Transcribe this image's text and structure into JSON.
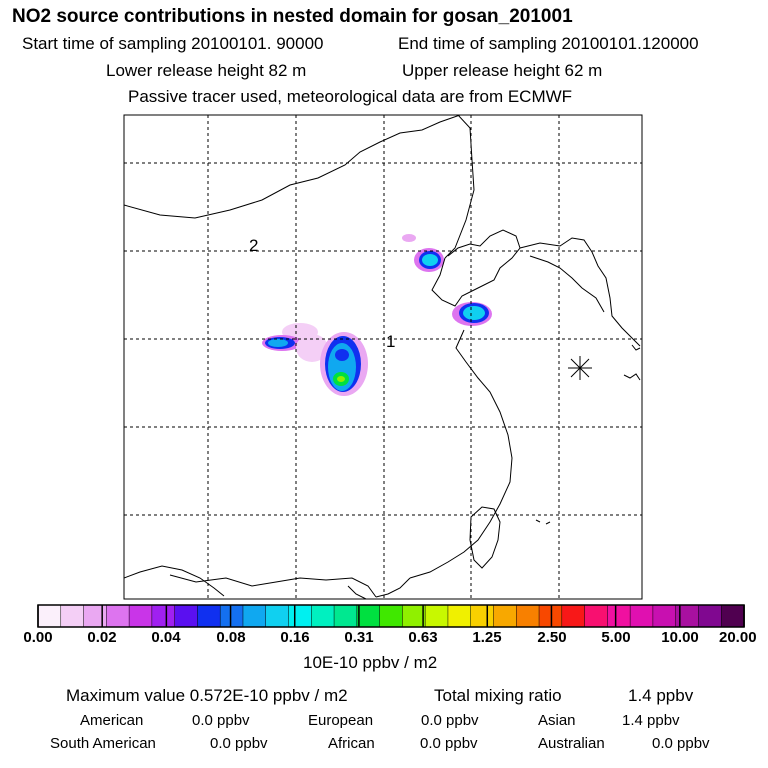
{
  "title": "NO2 source contributions in nested domain for gosan_201001",
  "start_time": "Start time of sampling 20100101. 90000",
  "end_time": "End time of sampling 20100101.120000",
  "lower_height": "Lower release height   82 m",
  "upper_height": "Upper release height   62 m",
  "passive_note": "Passive tracer used, meteorological data are from ECMWF",
  "map_labels": {
    "label_1": "1",
    "label_2": "2"
  },
  "chart_data": {
    "type": "heatmap",
    "title": "NO2 source contributions in nested domain for gosan_201001",
    "colorbar_ticks": [
      "0.00",
      "0.02",
      "0.04",
      "0.08",
      "0.16",
      "0.31",
      "0.63",
      "1.25",
      "2.50",
      "5.00",
      "10.00",
      "20.00"
    ],
    "colorbar_unit": "10E-10 ppbv / m2",
    "colors": [
      "#fbf0fb",
      "#f4cff6",
      "#eaa8f2",
      "#dd74ef",
      "#c935e8",
      "#a020f0",
      "#5a10f0",
      "#1030f0",
      "#1470f0",
      "#10a8f0",
      "#10d0f0",
      "#00f0f0",
      "#00f0c0",
      "#00e890",
      "#00e040",
      "#40e800",
      "#90f000",
      "#c8f800",
      "#f0f000",
      "#f8d000",
      "#f8a800",
      "#f88000",
      "#f84800",
      "#f81818",
      "#f81070",
      "#f010a0",
      "#e010b0",
      "#c810b0",
      "#a810a0",
      "#800890",
      "#500050"
    ]
  },
  "stats": {
    "max_value": "Maximum value  0.572E-10 ppbv / m2",
    "total_label": "Total mixing ratio",
    "total_value": "1.4 ppbv"
  },
  "sources": [
    {
      "label": "American",
      "value": "0.0 ppbv"
    },
    {
      "label": "European",
      "value": "0.0 ppbv"
    },
    {
      "label": "Asian",
      "value": "1.4 ppbv"
    },
    {
      "label": "South American",
      "value": "0.0 ppbv"
    },
    {
      "label": "African",
      "value": "0.0 ppbv"
    },
    {
      "label": "Australian",
      "value": "0.0 ppbv"
    }
  ]
}
